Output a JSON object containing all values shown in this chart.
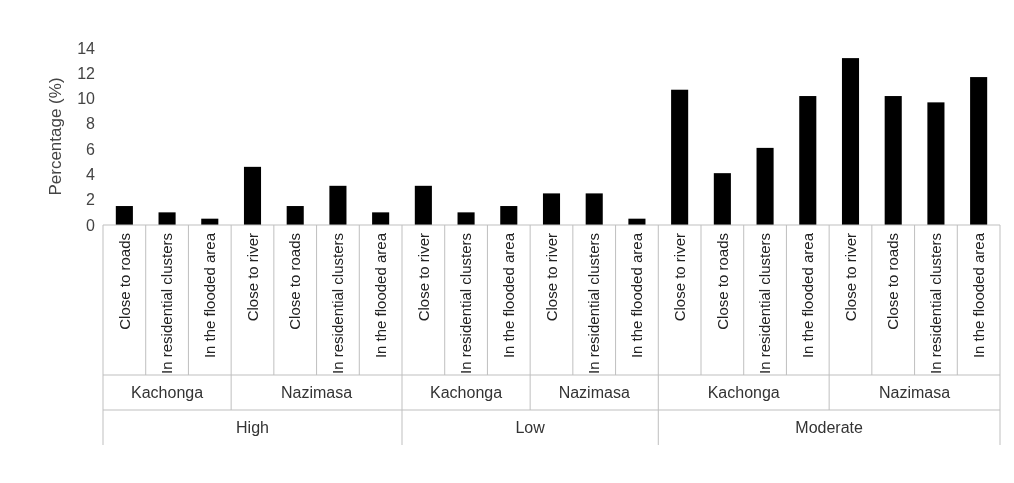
{
  "chart_data": {
    "type": "bar",
    "ylabel": "Percentage (%)",
    "color": "#000000",
    "categories": [
      "Close to roads",
      "In residential clusters",
      "In the flooded area",
      "Close to river",
      "Close to roads",
      "In residential clusters",
      "In the flooded area",
      "Close to river",
      "In residential clusters",
      "In the flooded area",
      "Close to river",
      "In residential clusters",
      "In the flooded area",
      "Close to river",
      "Close to roads",
      "In residential clusters",
      "In the flooded area",
      "Close to river",
      "Close to roads",
      "In residential clusters",
      "In the flooded area"
    ],
    "values": [
      1.5,
      1.0,
      0.5,
      4.6,
      1.5,
      3.1,
      1.0,
      3.1,
      1.0,
      1.5,
      2.5,
      2.5,
      0.5,
      10.7,
      4.1,
      6.1,
      10.2,
      13.2,
      10.2,
      9.7,
      11.7
    ],
    "annotations": [
      "Kachonga",
      "Nazimasa",
      "Kachonga",
      "Nazimasa",
      "Kachonga",
      "Nazimasa",
      "High",
      "Low",
      "Moderate"
    ],
    "ylim": [
      0,
      14
    ],
    "yticks": [
      0,
      2,
      4,
      6,
      8,
      10,
      12,
      14
    ]
  }
}
